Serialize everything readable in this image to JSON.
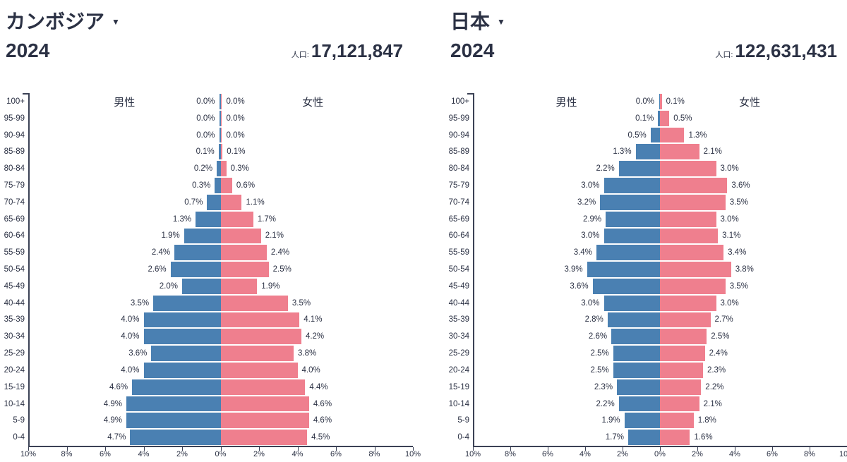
{
  "icons": {
    "dropdown_arrow": "▼"
  },
  "colors": {
    "male": "#4a80b2",
    "female": "#ef7f8e",
    "text": "#2b3144",
    "axis": "#3b4155",
    "background": "#ffffff"
  },
  "chart_data": [
    {
      "type": "bar",
      "subtype": "population-pyramid",
      "title": "カンボジア",
      "year": "2024",
      "population_label": "人口:",
      "population": "17,121,847",
      "categories": [
        "100+",
        "95-99",
        "90-94",
        "85-89",
        "80-84",
        "75-79",
        "70-74",
        "65-69",
        "60-64",
        "55-59",
        "50-54",
        "45-49",
        "40-44",
        "35-39",
        "30-34",
        "25-29",
        "20-24",
        "15-19",
        "10-14",
        "5-9",
        "0-4"
      ],
      "series": [
        {
          "name": "男性",
          "values": [
            0.0,
            0.0,
            0.0,
            0.1,
            0.2,
            0.3,
            0.7,
            1.3,
            1.9,
            2.4,
            2.6,
            2.0,
            3.5,
            4.0,
            4.0,
            3.6,
            4.0,
            4.6,
            4.9,
            4.9,
            4.7
          ]
        },
        {
          "name": "女性",
          "values": [
            0.0,
            0.0,
            0.0,
            0.1,
            0.3,
            0.6,
            1.1,
            1.7,
            2.1,
            2.4,
            2.5,
            1.9,
            3.5,
            4.1,
            4.2,
            3.8,
            4.0,
            4.4,
            4.6,
            4.6,
            4.5
          ]
        }
      ],
      "value_suffix": "%",
      "x_range_percent": [
        -10,
        10
      ],
      "x_ticks": [
        "10%",
        "8%",
        "6%",
        "4%",
        "2%",
        "0%",
        "2%",
        "4%",
        "6%",
        "8%",
        "10%"
      ]
    },
    {
      "type": "bar",
      "subtype": "population-pyramid",
      "title": "日本",
      "year": "2024",
      "population_label": "人口:",
      "population": "122,631,431",
      "categories": [
        "100+",
        "95-99",
        "90-94",
        "85-89",
        "80-84",
        "75-79",
        "70-74",
        "65-69",
        "60-64",
        "55-59",
        "50-54",
        "45-49",
        "40-44",
        "35-39",
        "30-34",
        "25-29",
        "20-24",
        "15-19",
        "10-14",
        "5-9",
        "0-4"
      ],
      "series": [
        {
          "name": "男性",
          "values": [
            0.0,
            0.1,
            0.5,
            1.3,
            2.2,
            3.0,
            3.2,
            2.9,
            3.0,
            3.4,
            3.9,
            3.6,
            3.0,
            2.8,
            2.6,
            2.5,
            2.5,
            2.3,
            2.2,
            1.9,
            1.7
          ]
        },
        {
          "name": "女性",
          "values": [
            0.1,
            0.5,
            1.3,
            2.1,
            3.0,
            3.6,
            3.5,
            3.0,
            3.1,
            3.4,
            3.8,
            3.5,
            3.0,
            2.7,
            2.5,
            2.4,
            2.3,
            2.2,
            2.1,
            1.8,
            1.6
          ]
        }
      ],
      "value_suffix": "%",
      "x_range_percent": [
        -10,
        10
      ],
      "x_ticks": [
        "10%",
        "8%",
        "6%",
        "4%",
        "2%",
        "0%",
        "2%",
        "4%",
        "6%",
        "8%",
        "10%"
      ]
    }
  ]
}
